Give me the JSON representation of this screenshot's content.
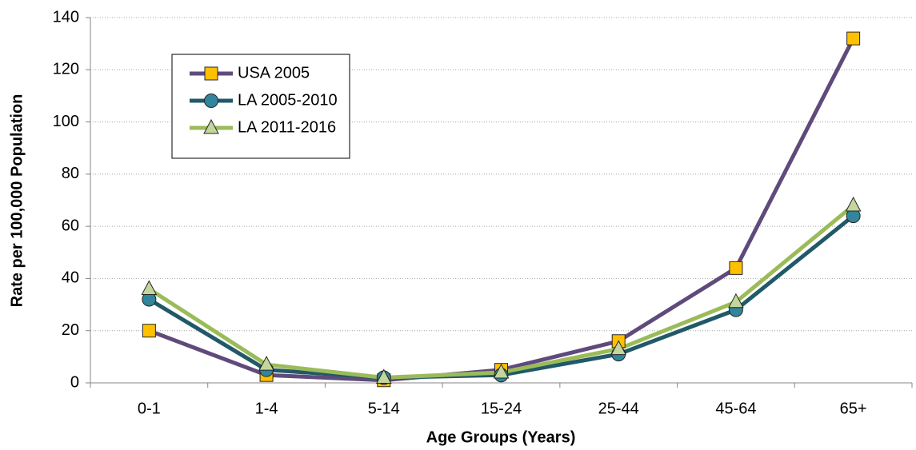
{
  "chart_data": {
    "type": "line",
    "x_label": "Age Groups (Years)",
    "y_label": "Rate per 100,000 Population",
    "categories": [
      "0-1",
      "1-4",
      "5-14",
      "15-24",
      "25-44",
      "45-64",
      "65+"
    ],
    "series": [
      {
        "name": "USA 2005",
        "color": "#604a7b",
        "marker": "square",
        "marker_color": "#ffc000",
        "values": [
          20,
          3,
          1,
          5,
          16,
          44,
          132
        ]
      },
      {
        "name": "LA 2005-2010",
        "color": "#215968",
        "marker": "circle",
        "marker_color": "#31859c",
        "values": [
          32,
          5,
          2,
          3,
          11,
          28,
          64
        ]
      },
      {
        "name": "LA 2011-2016",
        "color": "#9bbb59",
        "marker": "triangle",
        "marker_color": "#c3d69b",
        "values": [
          36,
          7,
          2,
          4,
          13,
          31,
          68
        ]
      }
    ],
    "ylim": [
      0,
      140
    ],
    "yticks": [
      0,
      20,
      40,
      60,
      80,
      100,
      120,
      140
    ],
    "grid": true,
    "legend": "upper left"
  }
}
